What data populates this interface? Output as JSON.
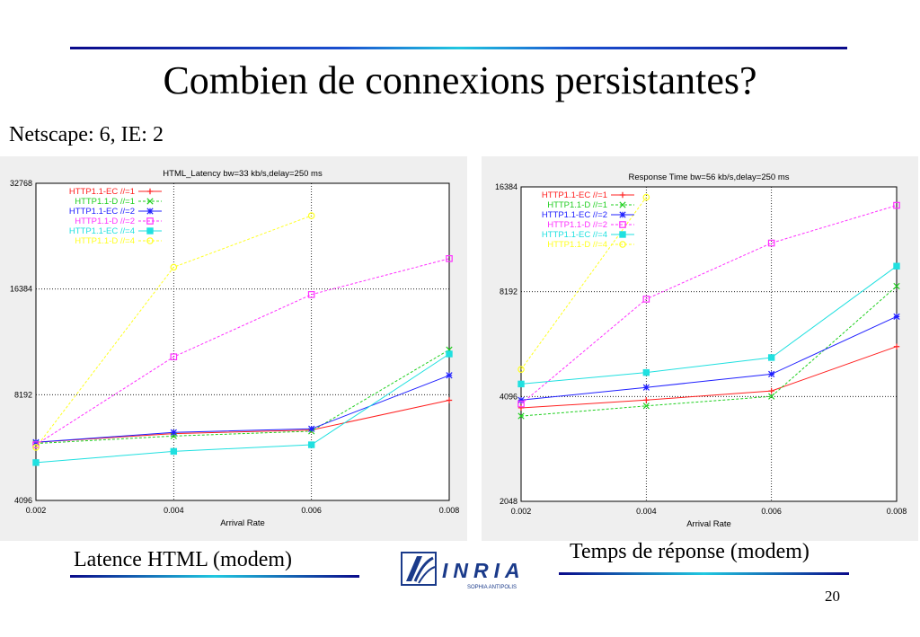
{
  "slide": {
    "title": "Combien de connexions persistantes?",
    "subtitle": "Netscape: 6, IE: 2",
    "caption_left": "Latence HTML (modem)",
    "caption_right": "Temps de réponse (modem)",
    "page_number": "20",
    "logo_text": "INRIA",
    "logo_subtext": "SOPHIA ANTIPOLIS"
  },
  "chart_data": [
    {
      "type": "line",
      "title": "HTML_Latency bw=33 kb/s,delay=250 ms",
      "xlabel": "Arrival Rate",
      "ylabel": "",
      "x": [
        0.002,
        0.004,
        0.006,
        0.008
      ],
      "x_ticks": [
        "0.002",
        "0.004",
        "0.006",
        "0.008"
      ],
      "y_scale": "log2",
      "ylim": [
        4096,
        32768
      ],
      "y_ticks": [
        "4096",
        "8192",
        "16384",
        "32768"
      ],
      "grid": true,
      "legend_position": "top-left",
      "series": [
        {
          "name": "HTTP1.1-EC //=1",
          "color": "#ff2020",
          "marker": "plus",
          "values": [
            6000,
            6350,
            6500,
            7900
          ]
        },
        {
          "name": "HTTP1.1-D //=1",
          "color": "#20d020",
          "marker": "cross",
          "values": [
            5950,
            6250,
            6450,
            11000
          ]
        },
        {
          "name": "HTTP1.1-EC //=2",
          "color": "#2020ff",
          "marker": "star",
          "values": [
            6000,
            6400,
            6550,
            9300
          ]
        },
        {
          "name": "HTTP1.1-D //=2",
          "color": "#ff30ff",
          "marker": "square",
          "values": [
            5900,
            10500,
            15800,
            20000
          ]
        },
        {
          "name": "HTTP1.1-EC //=4",
          "color": "#20e0e0",
          "marker": "filled-square",
          "values": [
            5250,
            5650,
            5900,
            10700
          ]
        },
        {
          "name": "HTTP1.1-D //=4",
          "color": "#ffff20",
          "marker": "circle",
          "values": [
            5800,
            18900,
            26500,
            null
          ]
        }
      ]
    },
    {
      "type": "line",
      "title": "Response Time bw=56 kb/s,delay=250 ms",
      "xlabel": "Arrival Rate",
      "ylabel": "",
      "x": [
        0.002,
        0.004,
        0.006,
        0.008
      ],
      "x_ticks": [
        "0.002",
        "0.004",
        "0.006",
        "0.008"
      ],
      "y_scale": "log2",
      "ylim": [
        2048,
        16384
      ],
      "y_ticks": [
        "2048",
        "4096",
        "8192",
        "16384"
      ],
      "grid": true,
      "legend_position": "top-left",
      "series": [
        {
          "name": "HTTP1.1-EC //=1",
          "color": "#ff2020",
          "marker": "plus",
          "values": [
            3800,
            4000,
            4250,
            5700
          ]
        },
        {
          "name": "HTTP1.1-D //=1",
          "color": "#20d020",
          "marker": "cross",
          "values": [
            3600,
            3850,
            4100,
            8500
          ]
        },
        {
          "name": "HTTP1.1-EC //=2",
          "color": "#2020ff",
          "marker": "star",
          "values": [
            4000,
            4350,
            4750,
            6950
          ]
        },
        {
          "name": "HTTP1.1-D //=2",
          "color": "#ff30ff",
          "marker": "square",
          "values": [
            3900,
            7800,
            11300,
            14500
          ]
        },
        {
          "name": "HTTP1.1-EC //=4",
          "color": "#20e0e0",
          "marker": "filled-square",
          "values": [
            4450,
            4800,
            5300,
            9700
          ]
        },
        {
          "name": "HTTP1.1-D //=4",
          "color": "#ffff20",
          "marker": "circle",
          "values": [
            4900,
            15300,
            null,
            null
          ]
        }
      ]
    }
  ]
}
